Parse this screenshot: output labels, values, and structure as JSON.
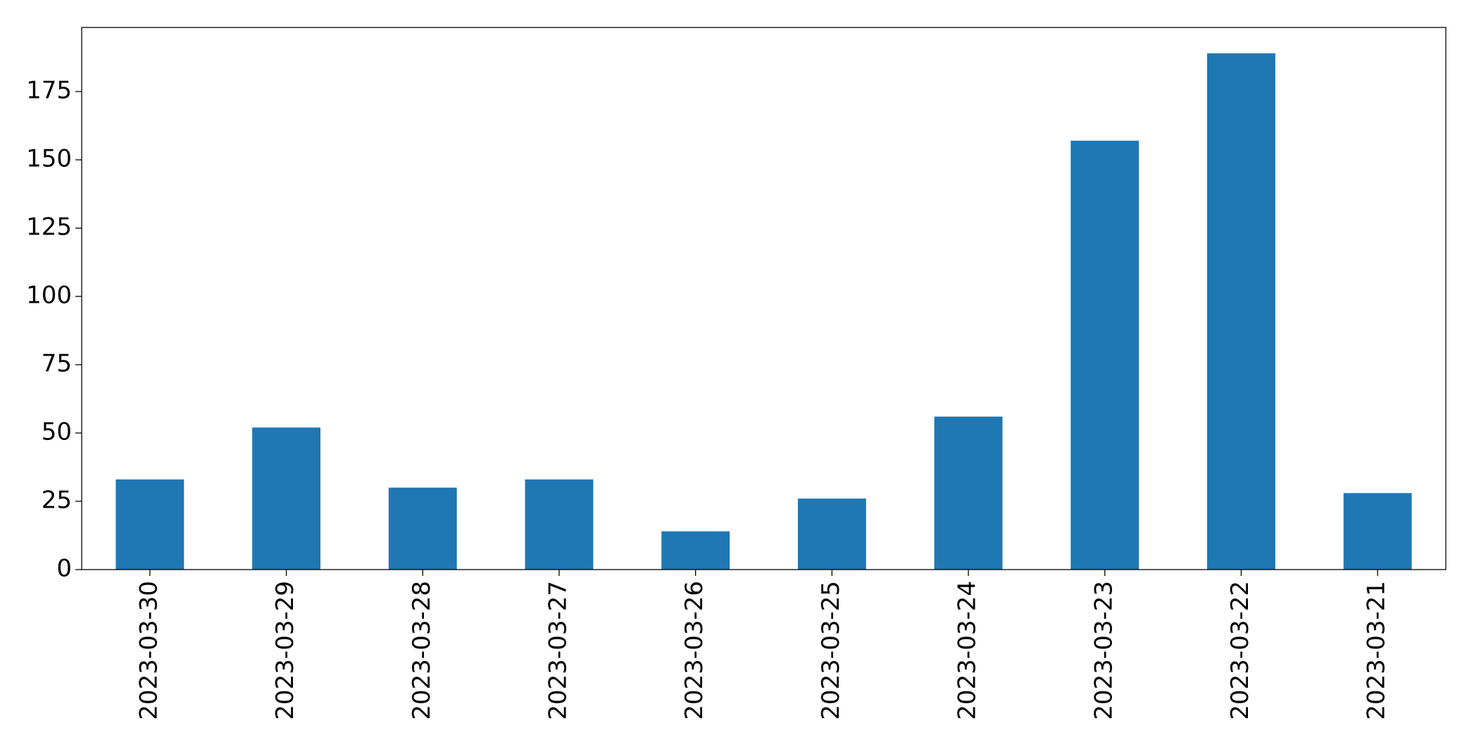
{
  "chart_data": {
    "type": "bar",
    "categories": [
      "2023-03-30",
      "2023-03-29",
      "2023-03-28",
      "2023-03-27",
      "2023-03-26",
      "2023-03-25",
      "2023-03-24",
      "2023-03-23",
      "2023-03-22",
      "2023-03-21"
    ],
    "values": [
      33,
      52,
      30,
      33,
      14,
      26,
      56,
      157,
      189,
      28
    ],
    "color": "#1f77b4",
    "ylim": [
      0,
      198.45
    ],
    "yticks": [
      0,
      25,
      50,
      75,
      100,
      125,
      150,
      175
    ],
    "grid": false
  }
}
